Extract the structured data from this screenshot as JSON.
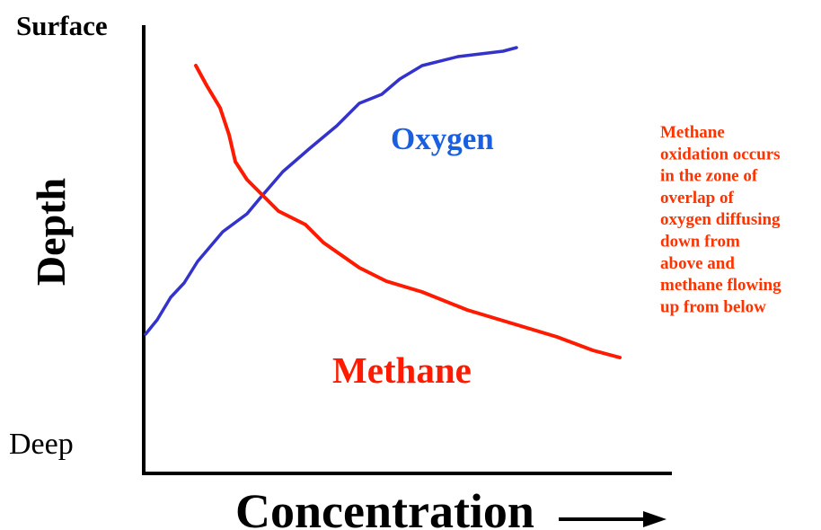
{
  "axes": {
    "top_label": "Surface",
    "bottom_label": "Deep",
    "y_label": "Depth",
    "x_label": "Concentration"
  },
  "curves": {
    "oxygen": "Oxygen",
    "methane": "Methane"
  },
  "annotation": [
    "Methane",
    "oxidation occurs",
    "in the zone of",
    "overlap of",
    "oxygen diffusing",
    "down from",
    "above and",
    "methane flowing",
    "up from below"
  ]
}
